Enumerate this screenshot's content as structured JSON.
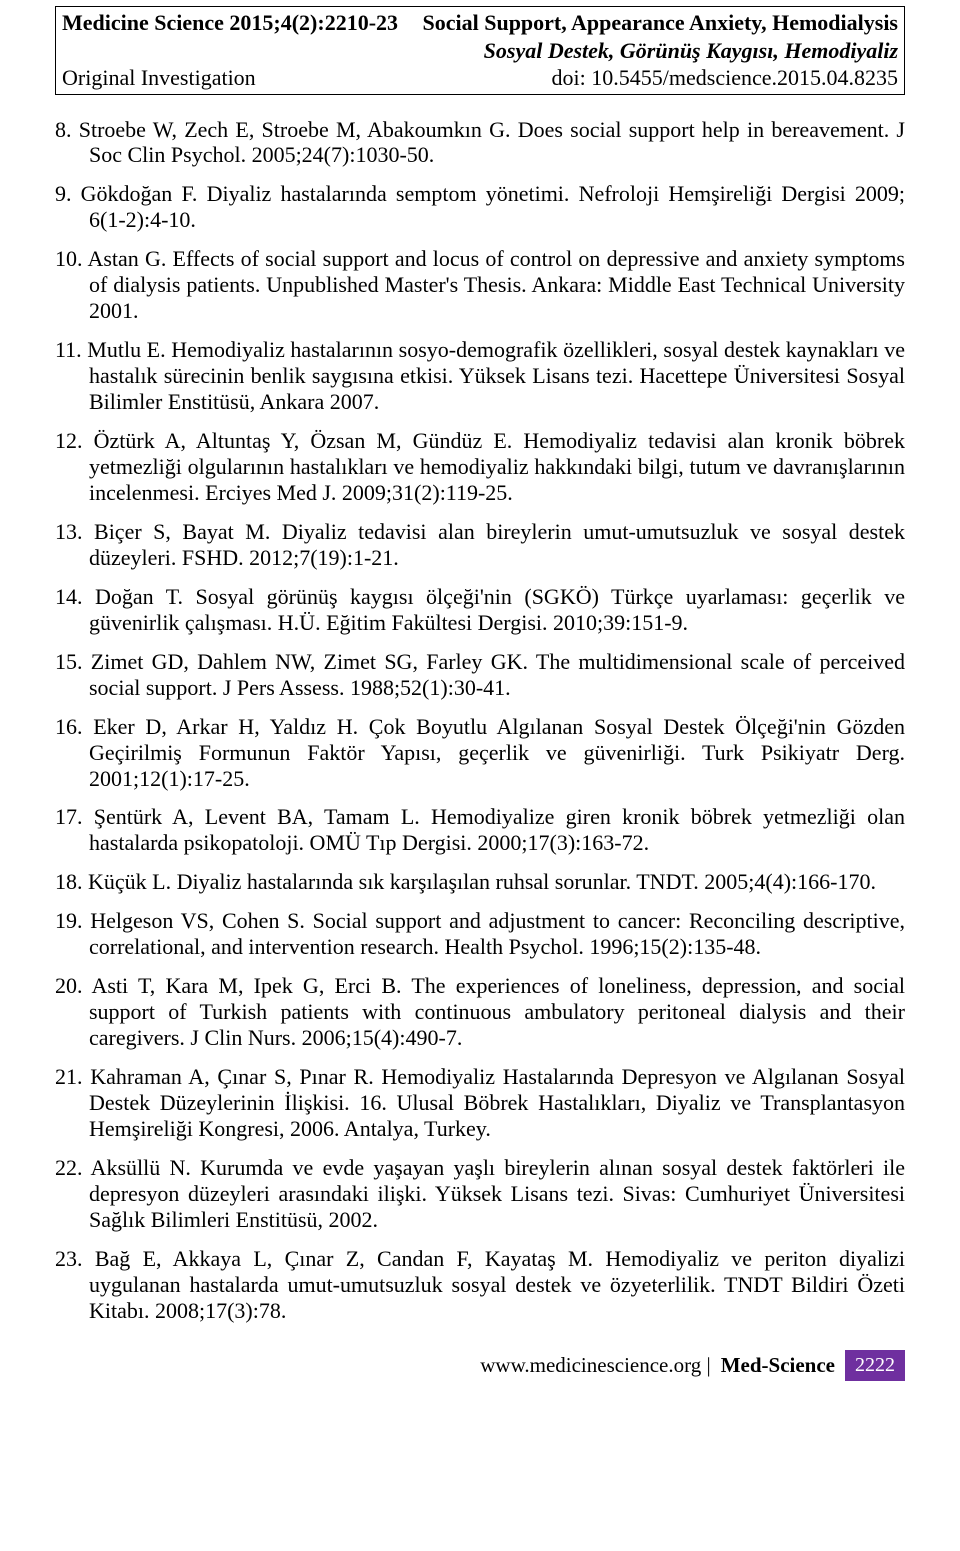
{
  "header": {
    "journal_issue": "Medicine Science 2015;4(2):2210-23",
    "title_en": "Social Support, Appearance Anxiety, Hemodialysis",
    "title_tr": "Sosyal Destek, Görünüş Kaygısı, Hemodiyaliz",
    "section": "Original Investigation",
    "doi": "doi: 10.5455/medscience.2015.04.8235"
  },
  "references": [
    {
      "num": "8.",
      "text": "Stroebe W, Zech E, Stroebe M, Abakoumkın G. Does social support help in bereavement. J Soc Clin Psychol. 2005;24(7):1030-50."
    },
    {
      "num": "9.",
      "text": "Gökdoğan F. Diyaliz hastalarında semptom yönetimi. Nefroloji Hemşireliği Dergisi 2009; 6(1-2):4-10."
    },
    {
      "num": "10.",
      "text": "Astan G. Effects of social support and locus of control on depressive and anxiety symptoms of dialysis patients. Unpublished Master's Thesis. Ankara: Middle East Technical University 2001."
    },
    {
      "num": "11.",
      "text": "Mutlu E. Hemodiyaliz hastalarının sosyo-demografik özellikleri, sosyal destek kaynakları ve hastalık sürecinin benlik saygısına etkisi. Yüksek Lisans tezi. Hacettepe Üniversitesi Sosyal Bilimler Enstitüsü, Ankara 2007."
    },
    {
      "num": "12.",
      "text": "Öztürk A, Altuntaş Y, Özsan M, Gündüz E. Hemodiyaliz tedavisi alan kronik böbrek yetmezliği olgularının hastalıkları ve hemodiyaliz hakkındaki bilgi, tutum ve davranışlarının incelenmesi. Erciyes Med J. 2009;31(2):119-25."
    },
    {
      "num": "13.",
      "text": "Biçer S, Bayat M. Diyaliz tedavisi alan bireylerin umut-umutsuzluk ve sosyal destek düzeyleri. FSHD. 2012;7(19):1-21."
    },
    {
      "num": "14.",
      "text": "Doğan T. Sosyal görünüş kaygısı ölçeği'nin (SGKÖ) Türkçe uyarlaması: geçerlik ve güvenirlik çalışması. H.Ü. Eğitim Fakültesi Dergisi. 2010;39:151-9."
    },
    {
      "num": "15.",
      "text": "Zimet GD, Dahlem NW, Zimet SG, Farley GK. The multidimensional scale of perceived social support. J Pers Assess. 1988;52(1):30-41."
    },
    {
      "num": "16.",
      "text": "Eker D, Arkar H, Yaldız H. Çok Boyutlu Algılanan Sosyal Destek Ölçeği'nin Gözden Geçirilmiş Formunun Faktör Yapısı, geçerlik ve güvenirliği. Turk Psikiyatr Derg. 2001;12(1):17-25."
    },
    {
      "num": "17.",
      "text": "Şentürk A, Levent BA, Tamam L. Hemodiyalize giren kronik böbrek yetmezliği olan hastalarda psikopatoloji. OMÜ Tıp Dergisi. 2000;17(3):163-72."
    },
    {
      "num": "18.",
      "text": "Küçük L. Diyaliz hastalarında sık karşılaşılan ruhsal sorunlar. TNDT. 2005;4(4):166-170."
    },
    {
      "num": "19.",
      "text": "Helgeson VS, Cohen S. Social support and adjustment to cancer: Reconciling descriptive, correlational, and intervention research. Health Psychol. 1996;15(2):135-48."
    },
    {
      "num": "20.",
      "text": "Asti T, Kara M, Ipek G, Erci B. The experiences of loneliness, depression, and social support of Turkish patients with continuous ambulatory peritoneal dialysis and their caregivers. J Clin Nurs. 2006;15(4):490-7."
    },
    {
      "num": "21.",
      "text": "Kahraman A, Çınar S, Pınar R. Hemodiyaliz Hastalarında Depresyon ve Algılanan Sosyal Destek Düzeylerinin İlişkisi. 16. Ulusal Böbrek Hastalıkları, Diyaliz ve Transplantasyon Hemşireliği Kongresi, 2006. Antalya, Turkey."
    },
    {
      "num": "22.",
      "text": "Aksüllü N. Kurumda ve evde yaşayan yaşlı bireylerin alınan sosyal destek faktörleri ile depresyon düzeyleri arasındaki ilişki. Yüksek Lisans tezi. Sivas: Cumhuriyet Üniversitesi Sağlık Bilimleri Enstitüsü, 2002."
    },
    {
      "num": "23.",
      "text": "Bağ E, Akkaya L, Çınar Z, Candan F, Kayataş M. Hemodiyaliz ve periton diyalizi uygulanan hastalarda umut-umutsuzluk sosyal destek ve özyeterlilik. TNDT Bildiri Özeti Kitabı. 2008;17(3):78."
    }
  ],
  "footer": {
    "site": "www.medicinescience.org |",
    "journal": "Med-Science",
    "page": "2222",
    "page_bg": "#6f2f9f",
    "page_color": "#ffffff"
  }
}
